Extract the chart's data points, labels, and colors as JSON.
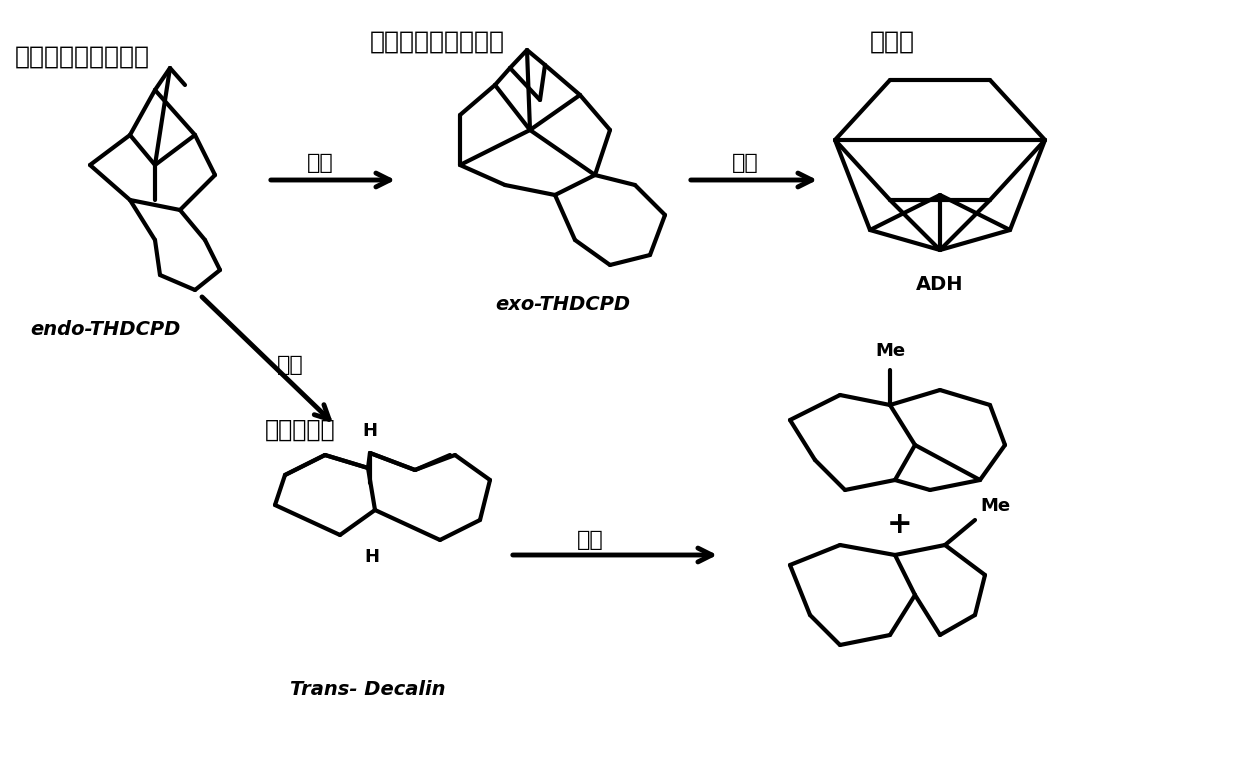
{
  "bg_color": "#ffffff",
  "text_color": "#000000",
  "line_color": "#000000",
  "line_width": 3.0,
  "title_chinese_1": "桥式四氢双环戊二烯",
  "title_chinese_2": "挂式四氢双环戊二烯",
  "title_chinese_3": "金刚烷",
  "label_endo": "endo-THDCPD",
  "label_exo": "exo-THDCPD",
  "label_adh": "ADH",
  "label_trans_cn": "反式十氢萘",
  "label_trans_en": "Trans- Decalin",
  "arrow_label": "异构",
  "plus_sign": "+"
}
